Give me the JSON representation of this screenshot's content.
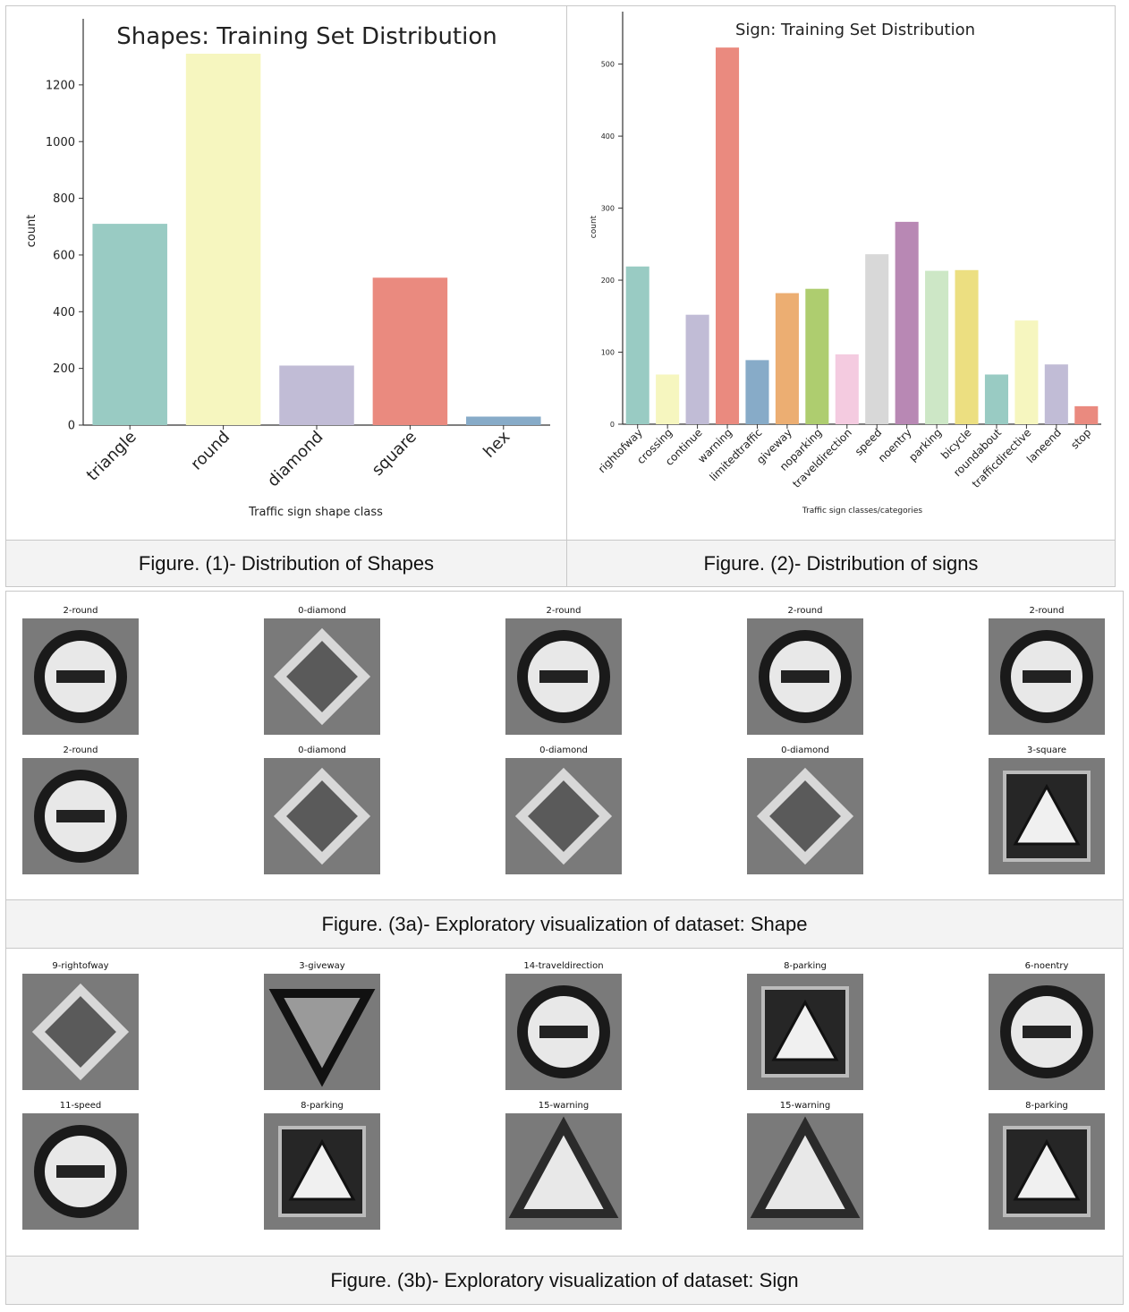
{
  "figure1": {
    "caption": "Figure. (1)- Distribution of Shapes"
  },
  "figure2": {
    "caption": "Figure. (2)- Distribution of signs"
  },
  "figure3a": {
    "caption": "Figure. (3a)- Exploratory visualization of dataset: Shape",
    "thumbnails": [
      {
        "title": "2-round",
        "shape": "round"
      },
      {
        "title": "0-diamond",
        "shape": "diamond"
      },
      {
        "title": "2-round",
        "shape": "round"
      },
      {
        "title": "2-round",
        "shape": "round"
      },
      {
        "title": "2-round",
        "shape": "round"
      },
      {
        "title": "2-round",
        "shape": "round"
      },
      {
        "title": "0-diamond",
        "shape": "diamond"
      },
      {
        "title": "0-diamond",
        "shape": "diamond"
      },
      {
        "title": "0-diamond",
        "shape": "diamond"
      },
      {
        "title": "3-square",
        "shape": "square"
      }
    ]
  },
  "figure3b": {
    "caption": "Figure. (3b)- Exploratory visualization of dataset: Sign",
    "thumbnails": [
      {
        "title": "9-rightofway",
        "shape": "diamond"
      },
      {
        "title": "3-giveway",
        "shape": "triangle-down"
      },
      {
        "title": "14-traveldirection",
        "shape": "round"
      },
      {
        "title": "8-parking",
        "shape": "square"
      },
      {
        "title": "6-noentry",
        "shape": "round"
      },
      {
        "title": "11-speed",
        "shape": "round"
      },
      {
        "title": "8-parking",
        "shape": "square"
      },
      {
        "title": "15-warning",
        "shape": "triangle"
      },
      {
        "title": "15-warning",
        "shape": "triangle"
      },
      {
        "title": "8-parking",
        "shape": "square"
      }
    ]
  },
  "chart_data": [
    {
      "type": "bar",
      "title": "Shapes: Training Set Distribution",
      "xlabel": "Traffic sign shape class",
      "ylabel": "count",
      "categories": [
        "triangle",
        "round",
        "diamond",
        "square",
        "hex"
      ],
      "values": [
        710,
        1310,
        210,
        520,
        30
      ],
      "colors": [
        "#99cbc3",
        "#f6f6bf",
        "#c1bcd6",
        "#ea8a7f",
        "#87abc8"
      ],
      "yticks": [
        0,
        200,
        400,
        600,
        800,
        1000,
        1200
      ],
      "ylim": [
        0,
        1370
      ],
      "grid": false
    },
    {
      "type": "bar",
      "title": "Sign: Training Set Distribution",
      "xlabel": "Traffic sign classes/categories",
      "ylabel": "count",
      "categories": [
        "rightofway",
        "crossing",
        "continue",
        "warning",
        "limitedtraffic",
        "giveway",
        "noparking",
        "traveldirection",
        "speed",
        "noentry",
        "parking",
        "bicycle",
        "roundabout",
        "trafficdirective",
        "laneend",
        "stop"
      ],
      "values": [
        219,
        69,
        152,
        523,
        89,
        182,
        188,
        97,
        236,
        281,
        213,
        214,
        69,
        144,
        83,
        25
      ],
      "colors": [
        "#99cbc3",
        "#f6f6bf",
        "#c1bcd6",
        "#ea8a7f",
        "#87abc8",
        "#ecae72",
        "#aecd6f",
        "#f4cbe0",
        "#d8d8d8",
        "#b888b4",
        "#cde7c6",
        "#ecdf81",
        "#99cbc3",
        "#f6f6bf",
        "#c1bcd6",
        "#ea8a7f"
      ],
      "yticks": [
        0,
        100,
        200,
        300,
        400,
        500
      ],
      "ylim": [
        0,
        548
      ],
      "grid": false
    }
  ]
}
